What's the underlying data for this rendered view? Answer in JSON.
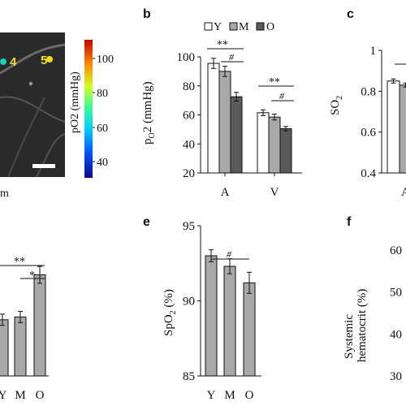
{
  "colors": {
    "Y": "#ffffff",
    "M": "#a8a8a8",
    "O": "#5a5a5a",
    "single": "#a8a8a8",
    "axis": "#111111",
    "label_yellow": "#f2dc16"
  },
  "panel_a": {
    "labels": [
      "4",
      "5"
    ],
    "colorbar": {
      "label": "pO2 (mmHg)",
      "ticks": [
        "100",
        "80",
        "60",
        "40"
      ],
      "range": [
        30,
        112
      ]
    },
    "caption_fragment": "m"
  },
  "panel_b": {
    "letter": "b",
    "legend": [
      "Y",
      "M",
      "O"
    ],
    "sig": [
      "**",
      "#",
      "**",
      "#"
    ]
  },
  "panel_c": {
    "letter": "c",
    "x_fragment": "A"
  },
  "panel_d": {
    "sig": [
      "**",
      "*"
    ]
  },
  "panel_e": {
    "letter": "e",
    "sig": [
      "#"
    ]
  },
  "panel_f": {
    "letter": "f"
  },
  "chart_data": [
    {
      "id": "b",
      "type": "bar",
      "ylabel": "pO2 (mmHg)",
      "ylim": [
        20,
        100
      ],
      "yticks": [
        20,
        40,
        60,
        80,
        100
      ],
      "categories": [
        "A",
        "V"
      ],
      "series": [
        {
          "name": "Y",
          "values": [
            95.5,
            61.5
          ],
          "errors": [
            3.5,
            2
          ]
        },
        {
          "name": "M",
          "values": [
            90,
            58.5
          ],
          "errors": [
            3.5,
            2
          ]
        },
        {
          "name": "O",
          "values": [
            72.5,
            50.5
          ],
          "errors": [
            3,
            1.5
          ]
        }
      ]
    },
    {
      "id": "c",
      "type": "bar",
      "ylabel": "SO2",
      "ylim": [
        0.4,
        1
      ],
      "yticks": [
        "0.4",
        "0.6",
        "0.8",
        "1"
      ],
      "categories": [
        "A"
      ],
      "series": [
        {
          "name": "Y",
          "values": [
            0.85
          ],
          "errors": [
            0.01
          ]
        },
        {
          "name": "M",
          "values": [
            0.83
          ],
          "errors": [
            0.01
          ]
        }
      ]
    },
    {
      "id": "d",
      "type": "bar",
      "categories": [
        "Y",
        "M",
        "O"
      ],
      "values": [
        0.4,
        0.42,
        0.72
      ],
      "errors": [
        0.04,
        0.04,
        0.06
      ]
    },
    {
      "id": "e",
      "type": "bar",
      "ylabel": "SpO2 (%)",
      "ylim": [
        85,
        95
      ],
      "yticks": [
        85,
        90,
        95
      ],
      "categories": [
        "Y",
        "M",
        "O"
      ],
      "values": [
        93,
        92.3,
        91.2
      ],
      "errors": [
        0.4,
        0.5,
        0.7
      ]
    },
    {
      "id": "f",
      "type": "bar",
      "ylabel": "Systemic hematocrit (%)",
      "ylim": [
        30,
        60
      ],
      "yticks": [
        30,
        40,
        50,
        60
      ]
    }
  ]
}
